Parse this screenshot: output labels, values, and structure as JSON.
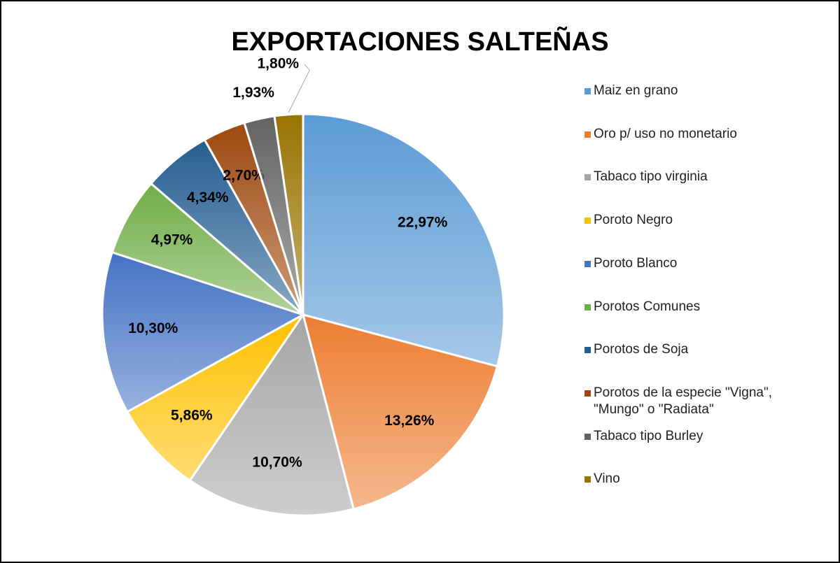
{
  "chart_data": {
    "type": "pie",
    "title": "EXPORTACIONES SALTEÑAS",
    "categories": [
      "Maiz en grano",
      "Oro p/ uso no monetario",
      "Tabaco tipo virginia",
      "Poroto Negro",
      "Poroto Blanco",
      "Porotos Comunes",
      "Porotos de Soja",
      "Porotos de la especie \"Vigna\", \"Mungo\" o \"Radiata\"",
      "Tabaco tipo Burley",
      "Vino"
    ],
    "values": [
      22.97,
      13.26,
      10.7,
      5.86,
      10.3,
      4.97,
      4.34,
      2.7,
      1.93,
      1.8
    ],
    "value_labels": [
      "22,97%",
      "13,26%",
      "10,70%",
      "5,86%",
      "10,30%",
      "4,97%",
      "4,34%",
      "2,70%",
      "1,93%",
      "1,80%"
    ],
    "colors": [
      "#5b9bd5",
      "#ed7d31",
      "#a5a5a5",
      "#ffc000",
      "#4472c4",
      "#70ad47",
      "#255e91",
      "#9e480e",
      "#636363",
      "#997300"
    ],
    "legend": "right"
  }
}
